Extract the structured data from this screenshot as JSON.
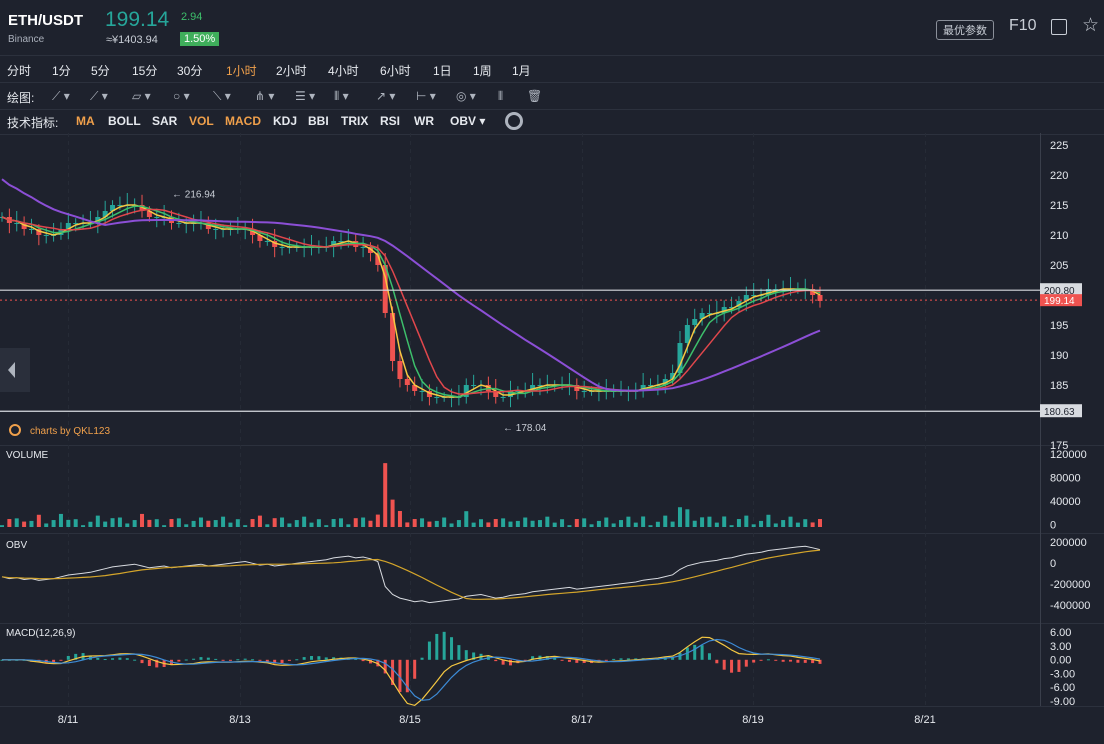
{
  "header": {
    "symbol": "ETH/USDT",
    "exchange": "Binance",
    "last_price": "199.14",
    "change": "2.94",
    "cny_price": "≈¥1403.94",
    "change_pct": "1.50%",
    "options_button": "最优参数",
    "f10_button": "F10",
    "fullscreen_icon": "expand-icon",
    "favorite_icon": "star-icon"
  },
  "intervals": [
    "分时",
    "1分",
    "5分",
    "15分",
    "30分",
    "1小时",
    "2小时",
    "4小时",
    "6小时",
    "1日",
    "1周",
    "1月"
  ],
  "active_interval": "1小时",
  "draw_tools": {
    "label": "绘图:",
    "tools": [
      "trend-line-icon",
      "ray-icon",
      "channel-icon",
      "shape-icon",
      "fib-icon",
      "pitchfork-icon",
      "gann-icon",
      "grid-icon",
      "arrow-icon",
      "measure-icon",
      "annotation-icon",
      "chart-type-icon",
      "trash-icon"
    ]
  },
  "indicators": {
    "label": "技术指标:",
    "items": [
      "MA",
      "BOLL",
      "SAR",
      "VOL",
      "MACD",
      "KDJ",
      "BBI",
      "TRIX",
      "RSI",
      "WR",
      "OBV ▾"
    ],
    "active": [
      "MA",
      "VOL",
      "MACD"
    ]
  },
  "watermark": "charts by QKL123",
  "colors": {
    "up": "#26a69a",
    "down": "#ef5350",
    "accent": "#f0a04b",
    "ma_fast": "#f5c842",
    "ma_mid": "#3dbf6b",
    "ma_slow": "#e0474c",
    "ma_long": "#8c4fd6"
  },
  "chart_data": {
    "type": "candlestick",
    "title": "",
    "x_ticks": [
      "8/11",
      "8/13",
      "8/15",
      "8/17",
      "8/19",
      "8/21"
    ],
    "price_axis": {
      "ticks": [
        225,
        220,
        215,
        210,
        205,
        195,
        190,
        185,
        175
      ],
      "ylim": [
        175,
        227
      ]
    },
    "horizontal_lines": [
      200.8,
      180.63
    ],
    "last_price_label": "199.14",
    "annotations": [
      {
        "text": "216.94",
        "value": 216.94
      },
      {
        "text": "178.04",
        "value": 178.04
      }
    ],
    "price_path_y": [
      213,
      212,
      212,
      211,
      211,
      210,
      210,
      210,
      211,
      212,
      212,
      212,
      212,
      213,
      214,
      215,
      215,
      215,
      215,
      214,
      213,
      213,
      213,
      212,
      212,
      212,
      212,
      212,
      211,
      211,
      211,
      211,
      211,
      211,
      210,
      209,
      209,
      208,
      208,
      208,
      208,
      208,
      208,
      208,
      208,
      209,
      209,
      209,
      208,
      208,
      207,
      205,
      197,
      189,
      186,
      185,
      184,
      184,
      183,
      183,
      183,
      183,
      183,
      185,
      185,
      185,
      184,
      183,
      183,
      184,
      184,
      184,
      185,
      185,
      185,
      185,
      185,
      185,
      184,
      184,
      184,
      184,
      184,
      184,
      184,
      184,
      184,
      185,
      185,
      185,
      186,
      187,
      192,
      195,
      196,
      197,
      197,
      197,
      198,
      198,
      199,
      200,
      200,
      200,
      201,
      201,
      201,
      201,
      201,
      201,
      200,
      199
    ],
    "volume": {
      "label": "VOLUME",
      "ticks": [
        "120000",
        "80000",
        "40000",
        "0"
      ],
      "ylim": [
        0,
        120000
      ],
      "peak": 105000
    },
    "obv": {
      "label": "OBV",
      "ticks": [
        "200000",
        "0",
        "-200000",
        "-400000"
      ],
      "ylim": [
        -450000,
        200000
      ]
    },
    "macd": {
      "label": "MACD(12,26,9)",
      "ticks": [
        "6.00",
        "3.00",
        "0.00",
        "-3.00",
        "-6.00",
        "-9.00"
      ],
      "ylim": [
        -9,
        6
      ]
    }
  }
}
